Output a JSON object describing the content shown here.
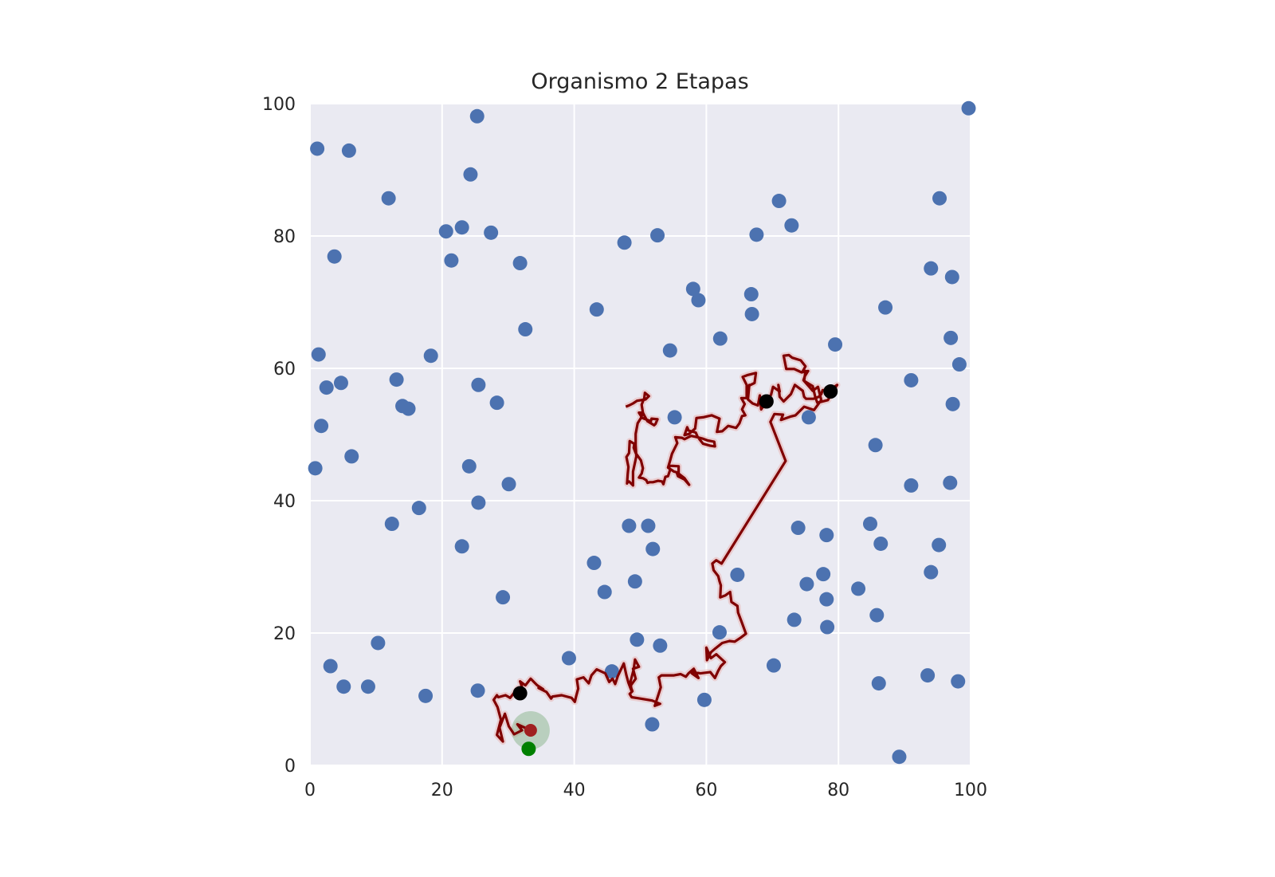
{
  "chart_data": {
    "type": "scatter",
    "title": "Organismo 2 Etapas",
    "xlabel": "",
    "ylabel": "",
    "xlim": [
      0,
      100
    ],
    "ylim": [
      0,
      100
    ],
    "xticks": [
      "0",
      "20",
      "40",
      "60",
      "80",
      "100"
    ],
    "yticks": [
      "0",
      "20",
      "40",
      "60",
      "80",
      "100"
    ],
    "grid": true,
    "colors": {
      "background": "#eaeaf2",
      "grid": "#ffffff",
      "food": "#4c72b0",
      "path": "#800000",
      "path_glow": "#e8b4b4",
      "visited": "#000000",
      "start": "#008000",
      "current": "#a02020",
      "sense_radius": "#7fb07f"
    },
    "food_points": [
      [
        25.3,
        98.1
      ],
      [
        1.1,
        93.2
      ],
      [
        5.9,
        92.9
      ],
      [
        24.3,
        89.3
      ],
      [
        11.9,
        85.7
      ],
      [
        95.3,
        85.7
      ],
      [
        71,
        85.3
      ],
      [
        72.9,
        81.6
      ],
      [
        23,
        81.3
      ],
      [
        20.6,
        80.7
      ],
      [
        27.4,
        80.5
      ],
      [
        52.6,
        80.1
      ],
      [
        67.6,
        80.2
      ],
      [
        47.6,
        79
      ],
      [
        3.7,
        76.9
      ],
      [
        21.4,
        76.3
      ],
      [
        31.8,
        75.9
      ],
      [
        94,
        75.1
      ],
      [
        97.2,
        73.8
      ],
      [
        58,
        72
      ],
      [
        66.8,
        71.2
      ],
      [
        58.8,
        70.3
      ],
      [
        87.1,
        69.2
      ],
      [
        43.4,
        68.9
      ],
      [
        66.9,
        68.2
      ],
      [
        32.6,
        65.9
      ],
      [
        97,
        64.6
      ],
      [
        62.1,
        64.5
      ],
      [
        79.5,
        63.6
      ],
      [
        54.5,
        62.7
      ],
      [
        1.3,
        62.1
      ],
      [
        18.3,
        61.9
      ],
      [
        98.3,
        60.6
      ],
      [
        13.1,
        58.3
      ],
      [
        91,
        58.2
      ],
      [
        4.7,
        57.8
      ],
      [
        25.5,
        57.5
      ],
      [
        2.5,
        57.1
      ],
      [
        28.3,
        54.8
      ],
      [
        97.3,
        54.6
      ],
      [
        14,
        54.3
      ],
      [
        14.9,
        53.9
      ],
      [
        75.5,
        52.6
      ],
      [
        55.2,
        52.6
      ],
      [
        1.7,
        51.3
      ],
      [
        85.6,
        48.4
      ],
      [
        6.3,
        46.7
      ],
      [
        24.1,
        45.2
      ],
      [
        0.8,
        44.9
      ],
      [
        96.9,
        42.7
      ],
      [
        30.1,
        42.5
      ],
      [
        91,
        42.3
      ],
      [
        25.5,
        39.7
      ],
      [
        16.5,
        38.9
      ],
      [
        12.4,
        36.5
      ],
      [
        84.8,
        36.5
      ],
      [
        48.3,
        36.2
      ],
      [
        51.2,
        36.2
      ],
      [
        73.9,
        35.9
      ],
      [
        78.2,
        34.8
      ],
      [
        86.4,
        33.5
      ],
      [
        95.2,
        33.3
      ],
      [
        23,
        33.1
      ],
      [
        51.9,
        32.7
      ],
      [
        43,
        30.6
      ],
      [
        77.7,
        28.9
      ],
      [
        94,
        29.2
      ],
      [
        64.7,
        28.8
      ],
      [
        49.2,
        27.8
      ],
      [
        75.2,
        27.4
      ],
      [
        83,
        26.7
      ],
      [
        44.6,
        26.2
      ],
      [
        29.2,
        25.4
      ],
      [
        78.2,
        25.1
      ],
      [
        85.8,
        22.7
      ],
      [
        73.3,
        22
      ],
      [
        78.3,
        20.9
      ],
      [
        62,
        20.1
      ],
      [
        49.5,
        19
      ],
      [
        10.3,
        18.5
      ],
      [
        53,
        18.1
      ],
      [
        39.2,
        16.2
      ],
      [
        3.1,
        15
      ],
      [
        70.2,
        15.1
      ],
      [
        45.7,
        14.2
      ],
      [
        93.5,
        13.6
      ],
      [
        98.1,
        12.7
      ],
      [
        86.1,
        12.4
      ],
      [
        5.1,
        11.9
      ],
      [
        8.8,
        11.9
      ],
      [
        25.4,
        11.3
      ],
      [
        17.5,
        10.5
      ],
      [
        59.7,
        9.9
      ],
      [
        51.8,
        6.2
      ],
      [
        89.2,
        1.3
      ],
      [
        99.7,
        99.3
      ]
    ],
    "visited_points": [
      [
        31.8,
        10.9
      ],
      [
        69.1,
        55
      ],
      [
        78.8,
        56.5
      ]
    ],
    "start_point": [
      33.1,
      2.5
    ],
    "current_point": [
      33.4,
      5.3
    ],
    "path": [
      [
        33.4,
        5.3
      ],
      [
        31.4,
        6.2
      ],
      [
        32.1,
        5.3
      ],
      [
        30.9,
        4.7
      ],
      [
        30.1,
        5.9
      ],
      [
        29.5,
        7.8
      ],
      [
        28.7,
        5.7
      ],
      [
        29.2,
        3.6
      ],
      [
        28.3,
        4.6
      ],
      [
        28.9,
        6.9
      ],
      [
        28.4,
        8.8
      ],
      [
        27.8,
        9.9
      ],
      [
        28.3,
        10.6
      ],
      [
        28.5,
        10.3
      ],
      [
        29.6,
        10.6
      ],
      [
        30.3,
        10.2
      ],
      [
        31.5,
        11.7
      ],
      [
        32.4,
        11
      ],
      [
        31.8,
        12.7
      ],
      [
        32.6,
        12.1
      ],
      [
        33.4,
        13.1
      ],
      [
        34.4,
        12.1
      ],
      [
        35.3,
        11.5
      ],
      [
        34.6,
        11.7
      ],
      [
        35.8,
        11.1
      ],
      [
        36.5,
        10.1
      ],
      [
        36.7,
        10.4
      ],
      [
        38.1,
        10.6
      ],
      [
        39.6,
        10.2
      ],
      [
        40.1,
        9.6
      ],
      [
        40.3,
        10.5
      ],
      [
        40.6,
        11.6
      ],
      [
        40.4,
        13
      ],
      [
        41.4,
        13.3
      ],
      [
        42.2,
        12.4
      ],
      [
        42.6,
        13.6
      ],
      [
        43.4,
        14.5
      ],
      [
        44.7,
        13.9
      ],
      [
        45.3,
        12.6
      ],
      [
        45.8,
        13.1
      ],
      [
        46.2,
        12.3
      ],
      [
        46.6,
        13.5
      ],
      [
        47.5,
        15.4
      ],
      [
        47.9,
        13.6
      ],
      [
        48.2,
        12.5
      ],
      [
        48.7,
        11.2
      ],
      [
        48.5,
        12.6
      ],
      [
        49,
        14.5
      ],
      [
        49.2,
        16
      ],
      [
        49.8,
        14.9
      ],
      [
        48.9,
        14.6
      ],
      [
        49.3,
        13.1
      ],
      [
        48.5,
        12
      ],
      [
        48.8,
        11.2
      ],
      [
        48.4,
        10.8
      ],
      [
        48.7,
        10.3
      ],
      [
        50,
        10.1
      ],
      [
        51.8,
        9.8
      ],
      [
        53,
        9.3
      ],
      [
        52.2,
        9
      ],
      [
        53.1,
        11.8
      ],
      [
        52.8,
        13.3
      ],
      [
        53.2,
        13.6
      ],
      [
        55.1,
        13.6
      ],
      [
        56.1,
        13.8
      ],
      [
        56.9,
        13.4
      ],
      [
        57.3,
        13.9
      ],
      [
        58.1,
        14.6
      ],
      [
        58.8,
        13.2
      ],
      [
        57.8,
        13.9
      ],
      [
        58,
        14.1
      ],
      [
        59.1,
        13.9
      ],
      [
        60.6,
        14.1
      ],
      [
        61.3,
        13.2
      ],
      [
        61.8,
        14.3
      ],
      [
        62.2,
        15
      ],
      [
        62.8,
        15.6
      ],
      [
        61.5,
        16.8
      ],
      [
        60.7,
        16.2
      ],
      [
        60,
        17.8
      ],
      [
        60.1,
        15.9
      ],
      [
        60.7,
        17.1
      ],
      [
        61.4,
        17.7
      ],
      [
        62.4,
        18.5
      ],
      [
        63.5,
        18.8
      ],
      [
        64.3,
        18.7
      ],
      [
        65.2,
        19.3
      ],
      [
        66,
        19.9
      ],
      [
        65.3,
        21.8
      ],
      [
        64.8,
        23.1
      ],
      [
        64.7,
        24.1
      ],
      [
        63.8,
        24.7
      ],
      [
        63.6,
        26.2
      ],
      [
        62.9,
        25.7
      ],
      [
        62.1,
        25.4
      ],
      [
        62.2,
        27.2
      ],
      [
        62,
        27.8
      ],
      [
        61.8,
        28.6
      ],
      [
        61.1,
        29.5
      ],
      [
        60.9,
        30.5
      ],
      [
        61.5,
        31
      ],
      [
        62.3,
        30.5
      ],
      [
        72,
        46
      ],
      [
        69.7,
        51.9
      ],
      [
        70.3,
        53.1
      ],
      [
        71.6,
        53
      ],
      [
        71.3,
        52.2
      ],
      [
        72.7,
        52.7
      ],
      [
        73.5,
        52.9
      ],
      [
        74.8,
        54.2
      ],
      [
        76.3,
        53.7
      ],
      [
        77.4,
        55.2
      ],
      [
        76.9,
        57.2
      ],
      [
        76.1,
        56.6
      ],
      [
        74.7,
        58.2
      ],
      [
        74.9,
        58.8
      ],
      [
        75.4,
        59.6
      ],
      [
        74.4,
        59.4
      ],
      [
        73.3,
        59.9
      ],
      [
        72.1,
        59.9
      ],
      [
        71.7,
        61.9
      ],
      [
        72.5,
        62
      ],
      [
        73,
        61.6
      ],
      [
        74.3,
        61.2
      ],
      [
        75,
        60.3
      ],
      [
        74.5,
        59.4
      ],
      [
        75,
        59.6
      ],
      [
        74.8,
        58.1
      ],
      [
        76.1,
        57.3
      ],
      [
        76.5,
        55.6
      ],
      [
        76.8,
        54.8
      ],
      [
        78.4,
        55.2
      ],
      [
        79.8,
        57.5
      ],
      [
        78.6,
        56.7
      ],
      [
        77.6,
        56.7
      ],
      [
        77.4,
        56.1
      ],
      [
        77,
        55.7
      ],
      [
        76.2,
        55.4
      ],
      [
        75.1,
        55.4
      ],
      [
        74.8,
        55.7
      ],
      [
        74.6,
        56.6
      ],
      [
        73.4,
        57.5
      ],
      [
        72.8,
        56.1
      ],
      [
        71.7,
        55
      ],
      [
        71.1,
        55.7
      ],
      [
        70.9,
        57.5
      ],
      [
        71.1,
        56.5
      ],
      [
        70.1,
        57.2
      ],
      [
        69.8,
        56
      ],
      [
        69.1,
        55
      ],
      [
        68.3,
        53.8
      ],
      [
        68.1,
        55.9
      ],
      [
        67.8,
        54.4
      ],
      [
        67,
        54.7
      ],
      [
        66.3,
        55.3
      ],
      [
        66.5,
        57.5
      ],
      [
        66.5,
        57.4
      ],
      [
        67.3,
        57.8
      ],
      [
        67.5,
        59.3
      ],
      [
        66.3,
        59
      ],
      [
        65.5,
        58.7
      ],
      [
        66.1,
        57.5
      ],
      [
        66.1,
        55.5
      ],
      [
        65.3,
        55.5
      ],
      [
        65.8,
        54.6
      ],
      [
        65.4,
        53.8
      ],
      [
        65.9,
        52.9
      ],
      [
        65.4,
        52.8
      ],
      [
        65,
        51.7
      ],
      [
        64.5,
        51
      ],
      [
        63.3,
        51.3
      ],
      [
        62.4,
        50.5
      ],
      [
        61.6,
        50.4
      ],
      [
        62,
        52.4
      ],
      [
        60.8,
        52.9
      ],
      [
        59.5,
        52.6
      ],
      [
        58.5,
        52.5
      ],
      [
        58.3,
        50.9
      ],
      [
        57.4,
        50.1
      ],
      [
        56.7,
        49.9
      ],
      [
        57.1,
        51.1
      ],
      [
        57.3,
        50.6
      ],
      [
        58.4,
        50.3
      ],
      [
        58.7,
        49.6
      ],
      [
        59.5,
        48.6
      ],
      [
        60.6,
        48.3
      ],
      [
        61.3,
        48.2
      ],
      [
        61.2,
        48.9
      ],
      [
        60.2,
        49.1
      ],
      [
        59.4,
        49.4
      ],
      [
        58.6,
        49.6
      ],
      [
        57.7,
        49.8
      ],
      [
        56.7,
        49.3
      ],
      [
        56.3,
        49.5
      ],
      [
        55.3,
        49.6
      ],
      [
        55.6,
        48.7
      ],
      [
        55.1,
        47.7
      ],
      [
        54.8,
        47.1
      ],
      [
        54.5,
        46
      ],
      [
        54.2,
        45
      ],
      [
        55.1,
        44.4
      ],
      [
        55.5,
        44.3
      ],
      [
        55.7,
        43.7
      ],
      [
        56.7,
        43.2
      ],
      [
        57.4,
        42.4
      ],
      [
        56.7,
        43.4
      ],
      [
        55.8,
        44.1
      ],
      [
        55.8,
        45.2
      ],
      [
        54.3,
        45.3
      ],
      [
        54.5,
        44.6
      ],
      [
        54.2,
        43.7
      ],
      [
        53.8,
        43.6
      ],
      [
        53.5,
        42.5
      ],
      [
        53.3,
        42.9
      ],
      [
        52.7,
        43
      ],
      [
        51.9,
        42.8
      ],
      [
        51.4,
        42.8
      ],
      [
        51.1,
        42.7
      ],
      [
        50.9,
        43.1
      ],
      [
        50.4,
        43.4
      ],
      [
        49.8,
        43.5
      ],
      [
        50.2,
        44.1
      ],
      [
        50.4,
        44.9
      ],
      [
        50.1,
        46.1
      ],
      [
        49.3,
        47.2
      ],
      [
        49,
        48
      ],
      [
        49.1,
        48.6
      ],
      [
        48.4,
        49
      ],
      [
        48.3,
        47.2
      ],
      [
        47.9,
        46.6
      ],
      [
        48.2,
        45.1
      ],
      [
        48.1,
        44
      ],
      [
        48,
        42.6
      ],
      [
        48.1,
        42.8
      ],
      [
        48.3,
        42.9
      ],
      [
        48.9,
        42.3
      ],
      [
        48.9,
        44.4
      ],
      [
        49.4,
        46.7
      ],
      [
        49.3,
        48.4
      ],
      [
        49.3,
        50.1
      ],
      [
        49.6,
        51.7
      ],
      [
        50.1,
        52.5
      ],
      [
        50.4,
        53.3
      ],
      [
        49.8,
        53.3
      ],
      [
        50.3,
        52.5
      ],
      [
        51.6,
        52
      ],
      [
        51.7,
        52.4
      ],
      [
        52.6,
        52.3
      ],
      [
        52.3,
        51.6
      ],
      [
        52.1,
        51.4
      ],
      [
        51.1,
        52
      ],
      [
        50.7,
        52.7
      ],
      [
        50.4,
        53.3
      ],
      [
        50.2,
        54.5
      ],
      [
        50.4,
        55
      ],
      [
        50.6,
        55.5
      ],
      [
        50.7,
        56.3
      ],
      [
        51.3,
        55.8
      ],
      [
        50.8,
        55.3
      ],
      [
        49.5,
        55.1
      ],
      [
        48.9,
        54.7
      ],
      [
        48.3,
        54.4
      ],
      [
        47.8,
        54.2
      ]
    ]
  }
}
